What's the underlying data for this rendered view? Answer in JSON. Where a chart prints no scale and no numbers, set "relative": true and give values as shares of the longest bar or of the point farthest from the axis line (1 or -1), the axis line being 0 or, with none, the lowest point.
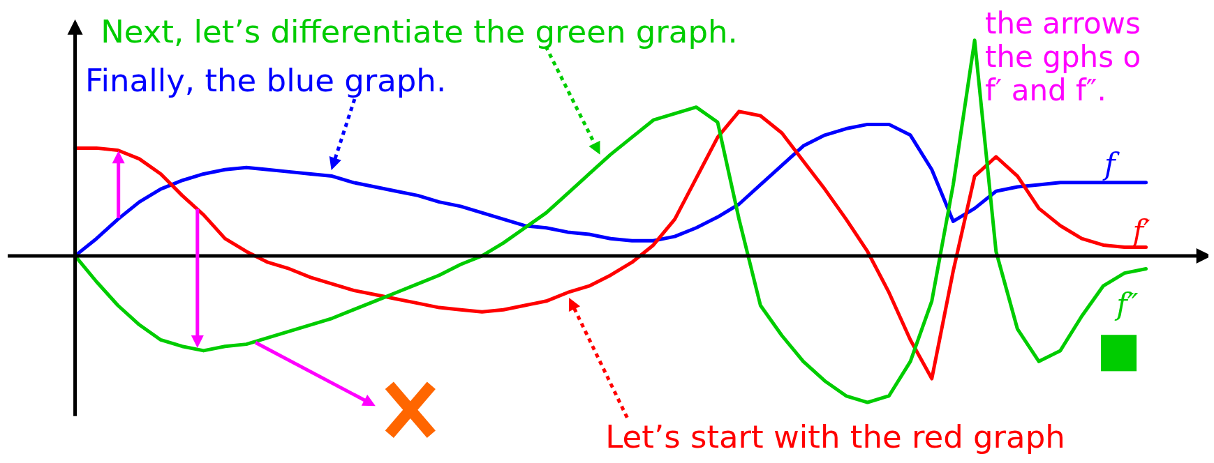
{
  "chart_data": {
    "type": "line",
    "relative": true,
    "legend": false,
    "tick_labels": false,
    "marker": "none",
    "line_style": "solid",
    "categories": [
      null,
      null,
      null,
      null,
      null,
      null,
      null,
      null,
      null,
      null,
      null,
      null,
      null,
      null,
      null,
      null,
      null,
      null,
      null,
      null,
      null,
      null,
      null,
      null,
      null,
      null,
      null,
      null,
      null,
      null,
      null,
      null,
      null,
      null,
      null,
      null,
      null,
      null,
      null,
      null,
      null,
      null,
      null,
      null,
      null,
      null,
      null,
      null,
      null,
      null,
      null
    ],
    "series": [
      {
        "name": "f",
        "color": "#0000ff",
        "values": [
          0,
          0.08,
          0.17,
          0.25,
          0.31,
          0.35,
          0.38,
          0.4,
          0.41,
          0.4,
          0.39,
          0.38,
          0.37,
          0.34,
          0.32,
          0.3,
          0.28,
          0.25,
          0.23,
          0.2,
          0.17,
          0.14,
          0.13,
          0.11,
          0.1,
          0.08,
          0.07,
          0.07,
          0.09,
          0.13,
          0.18,
          0.24,
          0.33,
          0.42,
          0.51,
          0.56,
          0.59,
          0.61,
          0.61,
          0.56,
          0.4,
          0.16,
          0.22,
          0.3,
          0.32,
          0.33,
          0.34,
          0.34,
          0.34,
          0.34,
          0.34
        ]
      },
      {
        "name": "f′",
        "color": "#ff0000",
        "values": [
          0.5,
          0.5,
          0.49,
          0.45,
          0.38,
          0.28,
          0.19,
          0.08,
          0.02,
          -0.03,
          -0.06,
          -0.1,
          -0.13,
          -0.16,
          -0.18,
          -0.2,
          -0.22,
          -0.24,
          -0.25,
          -0.26,
          -0.25,
          -0.23,
          -0.21,
          -0.17,
          -0.14,
          -0.09,
          -0.03,
          0.05,
          0.17,
          0.36,
          0.55,
          0.67,
          0.65,
          0.57,
          0.44,
          0.31,
          0.17,
          0.02,
          -0.17,
          -0.39,
          -0.57,
          -0.07,
          0.37,
          0.46,
          0.37,
          0.22,
          0.14,
          0.08,
          0.05,
          0.04,
          0.04
        ]
      },
      {
        "name": "f″",
        "color": "#00cc00",
        "values": [
          0,
          -0.12,
          -0.23,
          -0.32,
          -0.39,
          -0.42,
          -0.44,
          -0.42,
          -0.41,
          -0.38,
          -0.35,
          -0.32,
          -0.29,
          -0.25,
          -0.21,
          -0.17,
          -0.13,
          -0.09,
          -0.04,
          0,
          0.06,
          0.13,
          0.2,
          0.29,
          0.38,
          0.47,
          0.55,
          0.63,
          0.66,
          0.69,
          0.62,
          0.17,
          -0.23,
          -0.37,
          -0.49,
          -0.58,
          -0.65,
          -0.68,
          -0.65,
          -0.49,
          -0.21,
          0.33,
          1,
          0.02,
          -0.34,
          -0.49,
          -0.44,
          -0.28,
          -0.14,
          -0.08,
          -0.06
        ]
      }
    ],
    "annotations": [
      "Next, let’s differentiate the green graph.",
      "Finally, the blue graph.",
      "Let’s start with the red graph",
      "the arrows",
      "the gphs o",
      "f′ and f″."
    ]
  }
}
